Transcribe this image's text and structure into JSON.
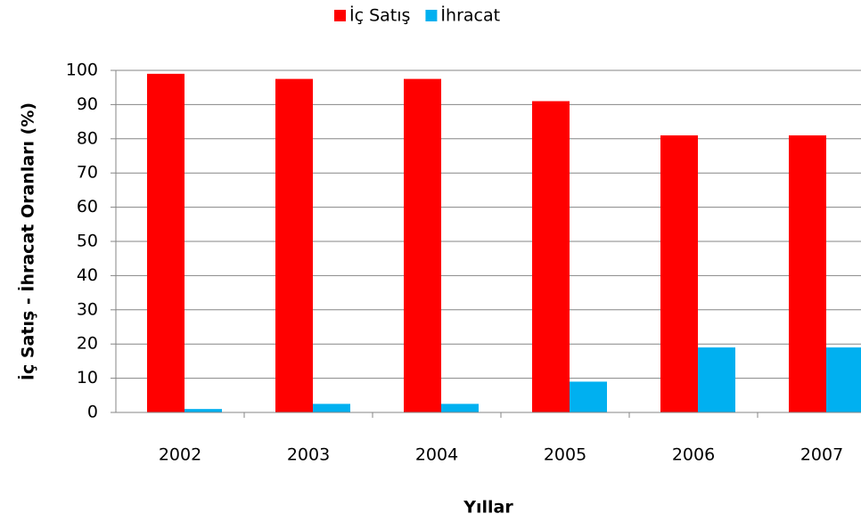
{
  "chart_data": {
    "type": "bar",
    "title": null,
    "x_label": "Yıllar",
    "y_label": "İç Satış - İhracat Oranları (%)",
    "categories": [
      "2002",
      "2003",
      "2004",
      "2005",
      "2006",
      "2007"
    ],
    "series": [
      {
        "name": "İç Satış",
        "color": "#ff0000",
        "values": [
          99,
          97.5,
          97.5,
          91,
          81,
          81
        ]
      },
      {
        "name": "İhracat",
        "color": "#00b0f0",
        "values": [
          1,
          2.5,
          2.5,
          9,
          19,
          19
        ]
      }
    ],
    "ylim": [
      0,
      100
    ],
    "yticks": [
      0,
      10,
      20,
      30,
      40,
      50,
      60,
      70,
      80,
      90,
      100
    ],
    "grid": true,
    "legend": "top"
  }
}
